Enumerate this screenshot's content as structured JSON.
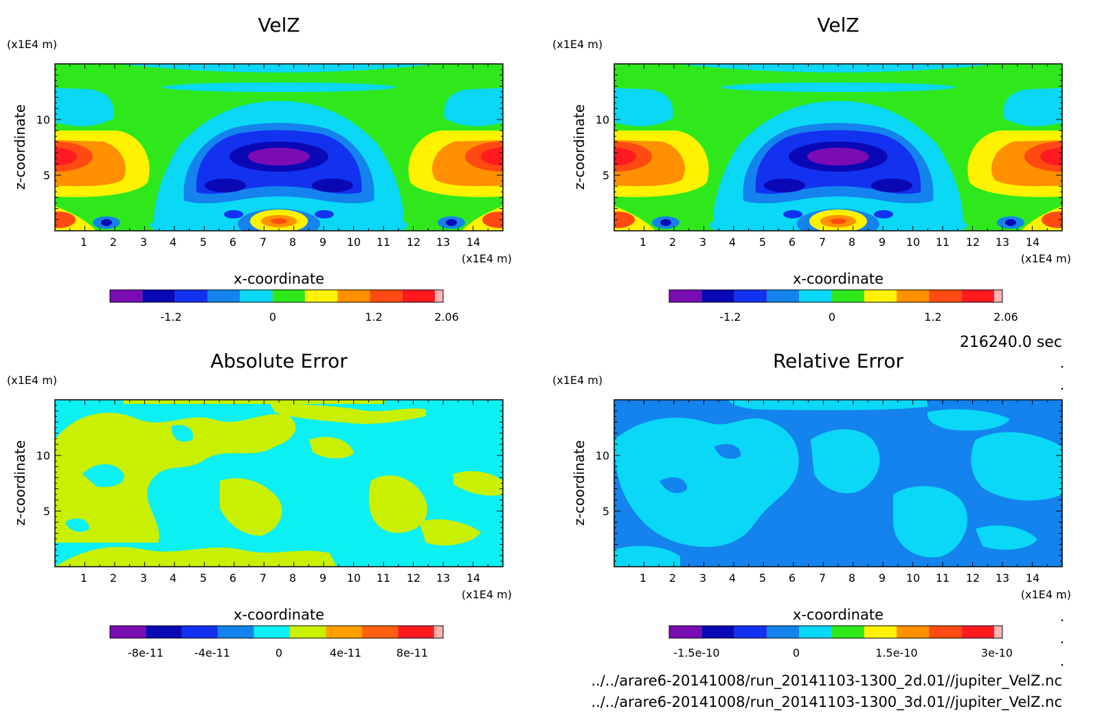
{
  "time_label": "216240.0 sec",
  "files": [
    "../../arare6-20141008/run_20141103-1300_2d.01//jupiter_VelZ.nc",
    "../../arare6-20141008/run_20141103-1300_3d.01//jupiter_VelZ.nc"
  ],
  "chart_data": [
    {
      "type": "heatmap",
      "title": "VelZ",
      "xlabel": "x-coordinate",
      "ylabel": "z-coordinate",
      "x_unit": "(x1E4 m)",
      "y_unit": "(x1E4 m)",
      "xlim": [
        0,
        15
      ],
      "ylim": [
        0,
        15
      ],
      "x_ticks": [
        "1",
        "2",
        "3",
        "4",
        "5",
        "6",
        "7",
        "8",
        "9",
        "10",
        "11",
        "12",
        "13",
        "14"
      ],
      "y_ticks": [
        "5",
        "10"
      ],
      "colorbar": {
        "colors": [
          "#7b0cb4",
          "#0a08b4",
          "#1232f0",
          "#1483ee",
          "#0ad8f6",
          "#2ee81c",
          "#fff200",
          "#ff9000",
          "#ff4a12",
          "#ff1a20",
          "#ffb4b4"
        ],
        "tick_labels": [
          "-1.2",
          "0",
          "1.2",
          "2.06"
        ]
      }
    },
    {
      "type": "heatmap",
      "title": "VelZ",
      "xlabel": "x-coordinate",
      "ylabel": "z-coordinate",
      "x_unit": "(x1E4 m)",
      "y_unit": "(x1E4 m)",
      "xlim": [
        0,
        15
      ],
      "ylim": [
        0,
        15
      ],
      "x_ticks": [
        "1",
        "2",
        "3",
        "4",
        "5",
        "6",
        "7",
        "8",
        "9",
        "10",
        "11",
        "12",
        "13",
        "14"
      ],
      "y_ticks": [
        "5",
        "10"
      ],
      "colorbar": {
        "colors": [
          "#7b0cb4",
          "#0a08b4",
          "#1232f0",
          "#1483ee",
          "#0ad8f6",
          "#2ee81c",
          "#fff200",
          "#ff9000",
          "#ff4a12",
          "#ff1a20",
          "#ffb4b4"
        ],
        "tick_labels": [
          "-1.2",
          "0",
          "1.2",
          "2.06"
        ]
      }
    },
    {
      "type": "heatmap",
      "title": "Absolute Error",
      "xlabel": "x-coordinate",
      "ylabel": "z-coordinate",
      "x_unit": "(x1E4 m)",
      "y_unit": "(x1E4 m)",
      "xlim": [
        0,
        15
      ],
      "ylim": [
        0,
        15
      ],
      "x_ticks": [
        "1",
        "2",
        "3",
        "4",
        "5",
        "6",
        "7",
        "8",
        "9",
        "10",
        "11",
        "12",
        "13",
        "14"
      ],
      "y_ticks": [
        "5",
        "10"
      ],
      "colorbar": {
        "colors": [
          "#7b0cb4",
          "#0a08b4",
          "#1232f0",
          "#1483ee",
          "#0cf0f4",
          "#c8f000",
          "#ffa000",
          "#ff6010",
          "#ff1a20",
          "#ffb0b0"
        ],
        "tick_labels": [
          "-8e-11",
          "-4e-11",
          "0",
          "4e-11",
          "8e-11"
        ]
      }
    },
    {
      "type": "heatmap",
      "title": "Relative Error",
      "xlabel": "x-coordinate",
      "ylabel": "z-coordinate",
      "x_unit": "(x1E4 m)",
      "y_unit": "(x1E4 m)",
      "xlim": [
        0,
        15
      ],
      "ylim": [
        0,
        15
      ],
      "x_ticks": [
        "1",
        "2",
        "3",
        "4",
        "5",
        "6",
        "7",
        "8",
        "9",
        "10",
        "11",
        "12",
        "13",
        "14"
      ],
      "y_ticks": [
        "5",
        "10"
      ],
      "colorbar": {
        "colors": [
          "#7b0cb4",
          "#0a08b4",
          "#1232f0",
          "#1483ee",
          "#0ad8f6",
          "#2ee81c",
          "#fff200",
          "#ff9000",
          "#ff4a12",
          "#ff1a20",
          "#ffb4b4"
        ],
        "tick_labels": [
          "-1.5e-10",
          "0",
          "1.5e-10",
          "3e-10"
        ]
      }
    }
  ]
}
